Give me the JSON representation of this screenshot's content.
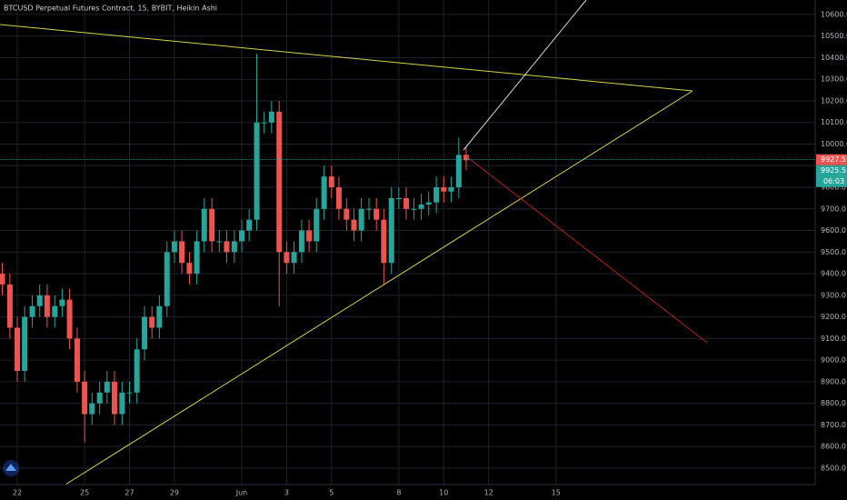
{
  "chart_data": {
    "type": "candlestick",
    "title": "BTCUSD Perpetual Futures Contract, 15, BYBIT, Heikin Ashi",
    "x": [
      -0.67,
      -0.33,
      0,
      0.33,
      0.67,
      1,
      1.33,
      1.67,
      2,
      2.33,
      2.67,
      3,
      3.33,
      3.67,
      4,
      4.33,
      4.67,
      5,
      5.33,
      5.67,
      6,
      6.33,
      6.67,
      7,
      7.33,
      7.67,
      8,
      8.33,
      8.67,
      9,
      9.33,
      9.67,
      10,
      10.33,
      10.67,
      11,
      11.33,
      11.67,
      12,
      12.33,
      12.67,
      13,
      13.33,
      13.67,
      14,
      14.33,
      14.67,
      15,
      15.33,
      15.67,
      16,
      16.33,
      16.67,
      17,
      17.33,
      17.67,
      18,
      18.33,
      18.67,
      19,
      19.33,
      19.67,
      20
    ],
    "open": [
      9400,
      9350,
      9150,
      8950,
      9200,
      9250,
      9300,
      9200,
      9250,
      9280,
      9100,
      8900,
      8750,
      8800,
      8850,
      8900,
      8750,
      8850,
      8850,
      9050,
      9200,
      9150,
      9250,
      9500,
      9550,
      9450,
      9400,
      9550,
      9700,
      9550,
      9550,
      9500,
      9550,
      9600,
      9650,
      10100,
      10100,
      10150,
      9500,
      9450,
      9500,
      9600,
      9550,
      9700,
      9850,
      9800,
      9700,
      9650,
      9600,
      9700,
      9700,
      9650,
      9450,
      9750,
      9750,
      9700,
      9700,
      9720,
      9730,
      9800,
      9780,
      9800,
      9950
    ],
    "high": [
      9450,
      9400,
      9200,
      9250,
      9300,
      9350,
      9350,
      9300,
      9330,
      9330,
      9150,
      8950,
      8850,
      8900,
      8950,
      8950,
      8900,
      8900,
      9100,
      9250,
      9250,
      9300,
      9550,
      9600,
      9600,
      9500,
      9600,
      9750,
      9750,
      9600,
      9600,
      9600,
      9650,
      9700,
      10420,
      10150,
      10200,
      10200,
      9550,
      9550,
      9650,
      9650,
      9750,
      9900,
      9900,
      9850,
      9750,
      9700,
      9750,
      9750,
      9750,
      9700,
      9800,
      9800,
      9800,
      9750,
      9770,
      9780,
      9850,
      9850,
      9850,
      10030,
      9990
    ],
    "low": [
      9300,
      9100,
      8900,
      8900,
      9150,
      9200,
      9150,
      9150,
      9200,
      9050,
      8850,
      8620,
      8700,
      8750,
      8800,
      8700,
      8700,
      8800,
      8800,
      9000,
      9100,
      9100,
      9200,
      9450,
      9400,
      9350,
      9350,
      9500,
      9500,
      9500,
      9450,
      9450,
      9500,
      9550,
      9600,
      10050,
      10050,
      9250,
      9400,
      9400,
      9450,
      9500,
      9500,
      9650,
      9750,
      9650,
      9600,
      9550,
      9550,
      9650,
      9600,
      9350,
      9400,
      9700,
      9650,
      9650,
      9650,
      9670,
      9680,
      9730,
      9730,
      9750,
      9880
    ],
    "close": [
      9350,
      9150,
      8950,
      9200,
      9250,
      9300,
      9200,
      9250,
      9280,
      9100,
      8900,
      8750,
      8800,
      8850,
      8900,
      8750,
      8850,
      8850,
      9050,
      9200,
      9150,
      9250,
      9500,
      9550,
      9450,
      9400,
      9550,
      9700,
      9550,
      9550,
      9500,
      9550,
      9600,
      9650,
      10100,
      10100,
      10150,
      9500,
      9450,
      9500,
      9600,
      9550,
      9700,
      9850,
      9800,
      9700,
      9650,
      9600,
      9700,
      9700,
      9650,
      9450,
      9750,
      9750,
      9700,
      9700,
      9720,
      9730,
      9800,
      9780,
      9800,
      9950,
      9925
    ],
    "up_color": "#26a69a",
    "down_color": "#ef5350",
    "xlim": [
      -0.77,
      35.55
    ],
    "xticks": [
      {
        "value": 0,
        "label": "22"
      },
      {
        "value": 3,
        "label": "25"
      },
      {
        "value": 5,
        "label": "27"
      },
      {
        "value": 7,
        "label": "29"
      },
      {
        "value": 10,
        "label": "Jun"
      },
      {
        "value": 12,
        "label": "3"
      },
      {
        "value": 14,
        "label": "5"
      },
      {
        "value": 17,
        "label": "8"
      },
      {
        "value": 19,
        "label": "10"
      },
      {
        "value": 21,
        "label": "12"
      },
      {
        "value": 24,
        "label": "15"
      }
    ],
    "ylim": [
      8424,
      10667
    ],
    "yticks": [
      {
        "value": 8500,
        "label": "8500.0"
      },
      {
        "value": 8600,
        "label": "8600.0"
      },
      {
        "value": 8700,
        "label": "8700.0"
      },
      {
        "value": 8800,
        "label": "8800.0"
      },
      {
        "value": 8900,
        "label": "8900.0"
      },
      {
        "value": 9000,
        "label": "9000.0"
      },
      {
        "value": 9100,
        "label": "9100.0"
      },
      {
        "value": 9200,
        "label": "9200.0"
      },
      {
        "value": 9300,
        "label": "9300.0"
      },
      {
        "value": 9400,
        "label": "9400.0"
      },
      {
        "value": 9500,
        "label": "9500.0"
      },
      {
        "value": 9600,
        "label": "9600.0"
      },
      {
        "value": 9700,
        "label": "9700.0"
      },
      {
        "value": 9800,
        "label": "9800.0"
      },
      {
        "value": 9900,
        "label": "9900.0"
      },
      {
        "value": 10000,
        "label": "10000.0"
      },
      {
        "value": 10100,
        "label": "10100.0"
      },
      {
        "value": 10200,
        "label": "10200.0"
      },
      {
        "value": 10300,
        "label": "10300.0"
      },
      {
        "value": 10400,
        "label": "10400.0"
      },
      {
        "value": 10500,
        "label": "10500.0"
      },
      {
        "value": 10600,
        "label": "10600.0"
      }
    ],
    "grid": true,
    "last_price": 9927.5,
    "mark_price": 9925.5,
    "countdown": "06:03"
  }
}
